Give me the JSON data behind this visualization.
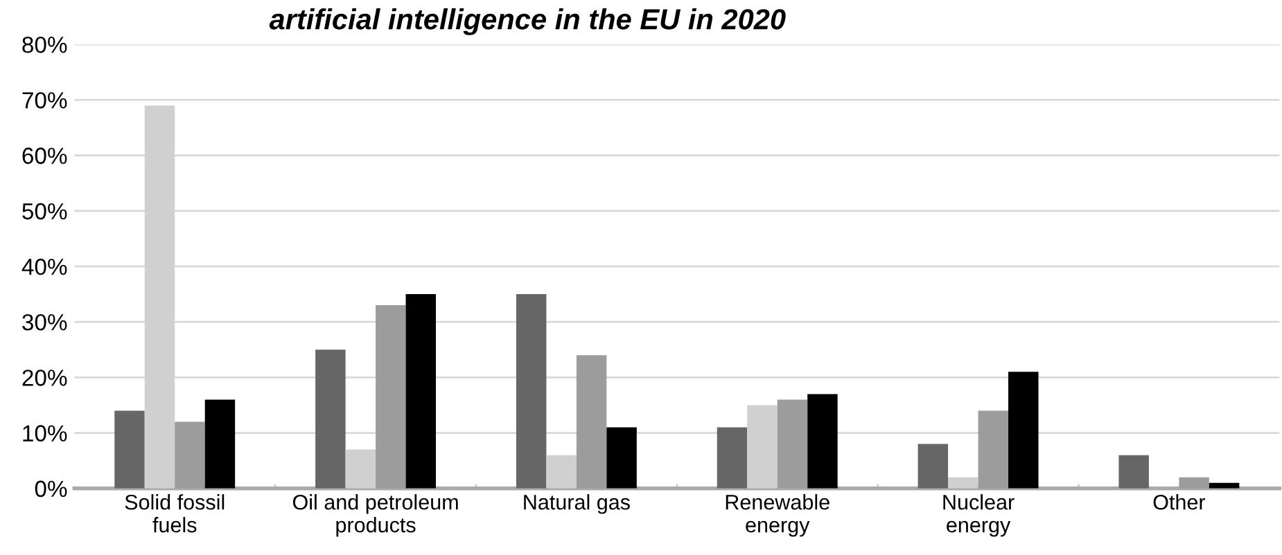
{
  "chart_data": {
    "type": "bar",
    "title": "artificial intelligence in the EU in 2020",
    "categories": [
      "Solid fossil\nfuels",
      "Oil and petroleum\nproducts",
      "Natural gas",
      "Renewable\nenergy",
      "Nuclear\nenergy",
      "Other"
    ],
    "series": [
      {
        "color": "#666666",
        "values": [
          14,
          25,
          35,
          11,
          8,
          6
        ]
      },
      {
        "color": "#d0d0d0",
        "values": [
          69,
          7,
          6,
          15,
          2,
          0
        ]
      },
      {
        "color": "#9c9c9c",
        "values": [
          12,
          33,
          24,
          16,
          14,
          2
        ]
      },
      {
        "color": "#000000",
        "values": [
          16,
          35,
          11,
          17,
          21,
          1
        ]
      }
    ],
    "ylim": [
      0,
      80
    ],
    "yticks": [
      {
        "value": 0,
        "label": "0%"
      },
      {
        "value": 10,
        "label": "10%"
      },
      {
        "value": 20,
        "label": "20%"
      },
      {
        "value": 30,
        "label": "30%"
      },
      {
        "value": 40,
        "label": "40%"
      },
      {
        "value": 50,
        "label": "50%"
      },
      {
        "value": 60,
        "label": "60%"
      },
      {
        "value": 70,
        "label": "70%"
      },
      {
        "value": 80,
        "label": "80%"
      }
    ],
    "grid": "y",
    "legend": false
  }
}
